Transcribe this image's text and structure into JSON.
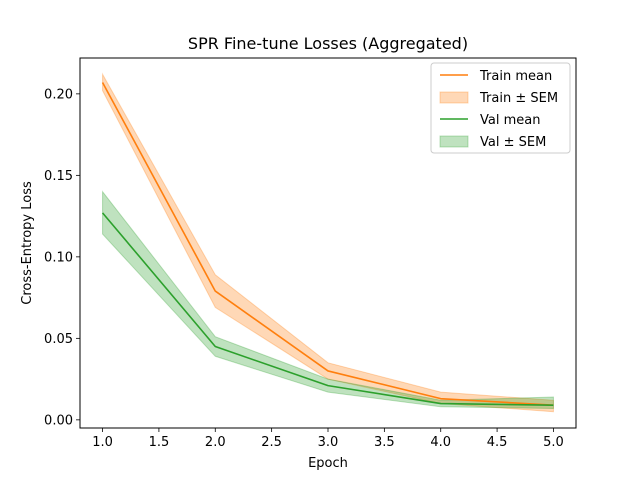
{
  "chart_data": {
    "type": "line",
    "title": "SPR Fine-tune Losses (Aggregated)",
    "xlabel": "Epoch",
    "ylabel": "Cross-Entropy Loss",
    "xlim": [
      0.8,
      5.2
    ],
    "ylim": [
      -0.005,
      0.222
    ],
    "xticks": [
      1.0,
      1.5,
      2.0,
      2.5,
      3.0,
      3.5,
      4.0,
      4.5,
      5.0
    ],
    "yticks": [
      0.0,
      0.05,
      0.1,
      0.15,
      0.2
    ],
    "x": [
      1,
      2,
      3,
      4,
      5
    ],
    "grid": false,
    "legend_position": "upper right",
    "series": [
      {
        "name": "Train mean",
        "band_name": "Train ± SEM",
        "color": "#ff7f0e",
        "values": [
          0.207,
          0.079,
          0.03,
          0.013,
          0.009
        ],
        "upper": [
          0.212,
          0.089,
          0.035,
          0.017,
          0.012
        ],
        "lower": [
          0.202,
          0.069,
          0.025,
          0.01,
          0.005
        ]
      },
      {
        "name": "Val mean",
        "band_name": "Val ± SEM",
        "color": "#2ca02c",
        "values": [
          0.127,
          0.045,
          0.021,
          0.01,
          0.009
        ],
        "upper": [
          0.14,
          0.051,
          0.025,
          0.012,
          0.014
        ],
        "lower": [
          0.114,
          0.039,
          0.017,
          0.008,
          0.007
        ]
      }
    ]
  }
}
